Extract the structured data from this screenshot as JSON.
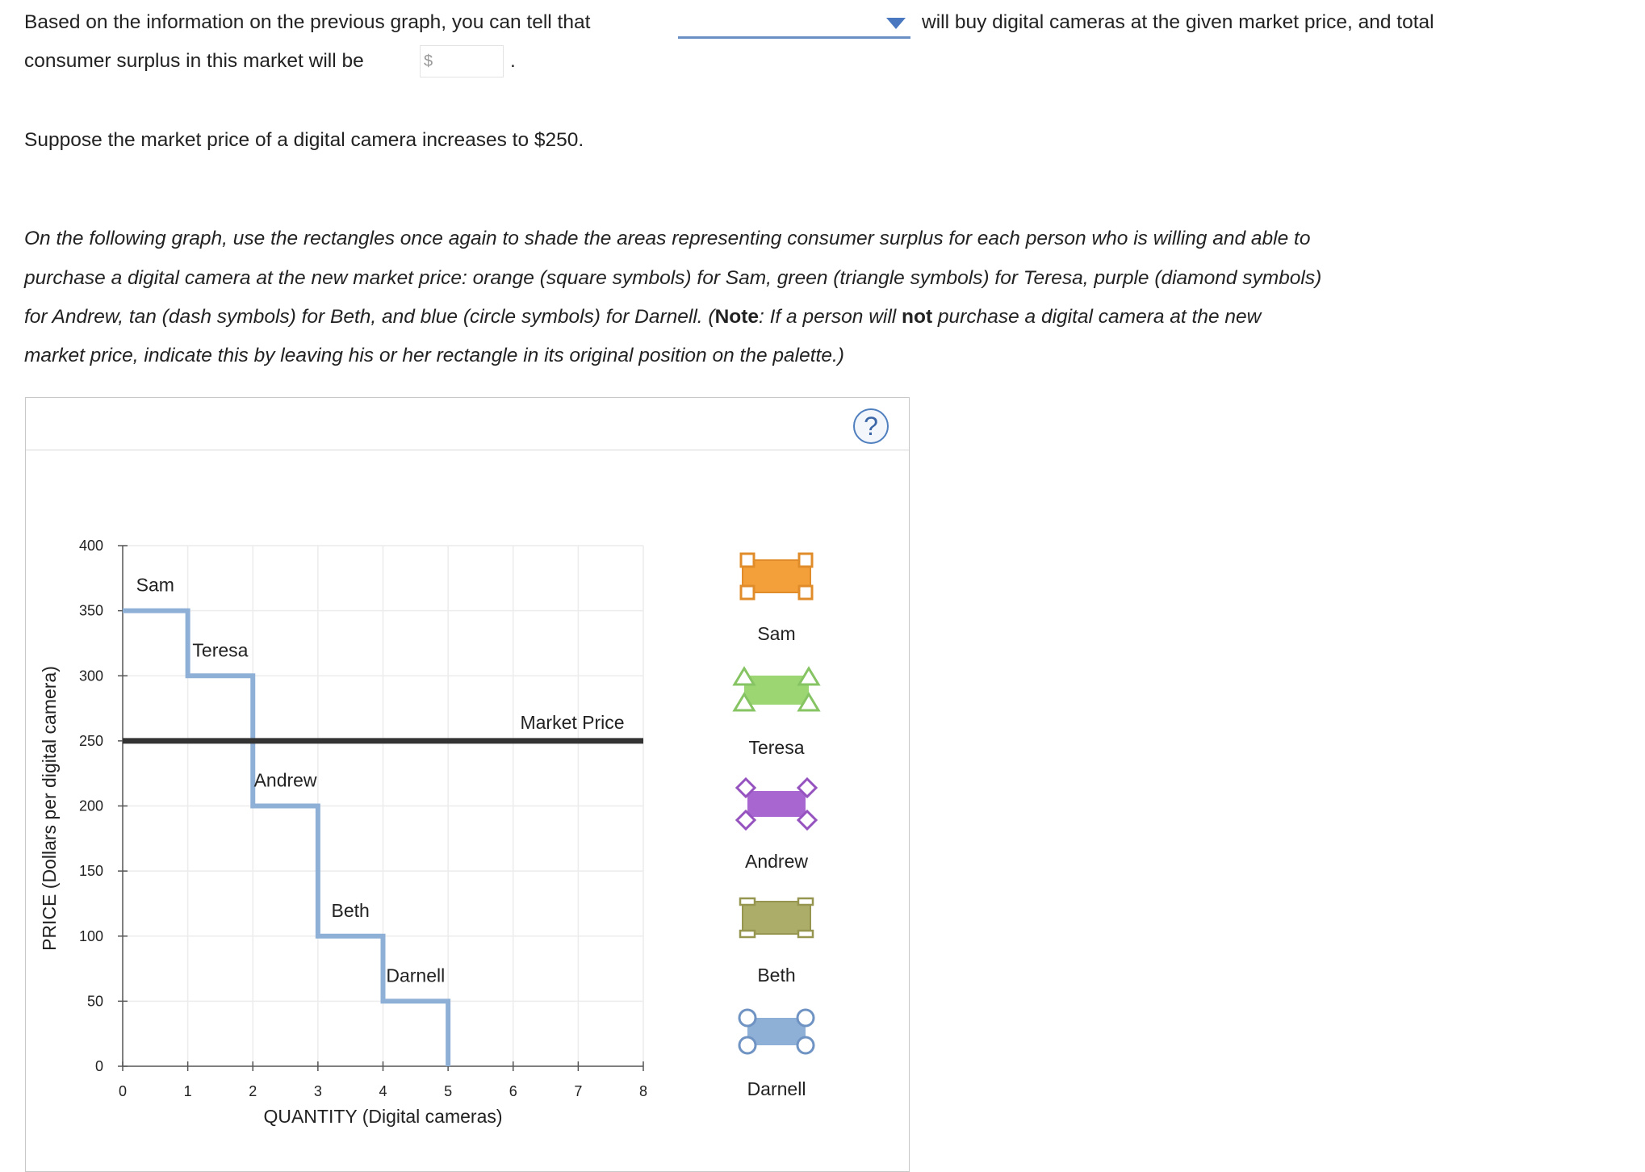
{
  "question": {
    "line1_before": "Based on the information on the previous graph, you can tell that",
    "line1_after": "will buy digital cameras at the given market price, and total",
    "line2_before": "consumer surplus in this market will be",
    "currency_symbol": "$",
    "line2_end": ".",
    "dropdown_value": "",
    "money_value": ""
  },
  "scenario": "Suppose the market price of a digital camera increases to $250.",
  "instructions": {
    "line1": "On the following graph, use the rectangles once again to shade the areas representing consumer surplus for each person who is willing and able to",
    "line2": "purchase a digital camera at the new market price: orange (square symbols) for Sam, green (triangle symbols) for Teresa, purple (diamond symbols)",
    "line3_a": "for Andrew, tan (dash symbols) for Beth, and blue (circle symbols) for Darnell. (",
    "line3_note": "Note",
    "line3_b": ": If a person will ",
    "line3_not": "not",
    "line3_c": " purchase a digital camera at the new",
    "line4": "market price, indicate this by leaving his or her rectangle in its original position on the palette.)"
  },
  "help_label": "?",
  "chart_data": {
    "type": "line",
    "xlabel": "QUANTITY (Digital cameras)",
    "ylabel": "PRICE (Dollars per digital camera)",
    "xlim": [
      0,
      8
    ],
    "ylim": [
      0,
      400
    ],
    "xticks": [
      0,
      1,
      2,
      3,
      4,
      5,
      6,
      7,
      8
    ],
    "yticks": [
      0,
      50,
      100,
      150,
      200,
      250,
      300,
      350,
      400
    ],
    "grid": true,
    "demand_color": "#8fb0d6",
    "market_price_color": "#333333",
    "demand_steps": [
      {
        "name": "Sam",
        "x_start": 0,
        "x_end": 1,
        "price": 350
      },
      {
        "name": "Teresa",
        "x_start": 1,
        "x_end": 2,
        "price": 300
      },
      {
        "name": "Andrew",
        "x_start": 2,
        "x_end": 3,
        "price": 200
      },
      {
        "name": "Beth",
        "x_start": 3,
        "x_end": 4,
        "price": 100
      },
      {
        "name": "Darnell",
        "x_start": 4,
        "x_end": 5,
        "price": 50
      }
    ],
    "market_price": {
      "label": "Market Price",
      "value": 250
    }
  },
  "palette": [
    {
      "name": "Sam",
      "color": "#f4a03a",
      "border": "#e08c2a",
      "symbol": "square"
    },
    {
      "name": "Teresa",
      "color": "#9bd672",
      "border": "#86c463",
      "symbol": "triangle"
    },
    {
      "name": "Andrew",
      "color": "#a866d0",
      "border": "#9653c0",
      "symbol": "diamond"
    },
    {
      "name": "Beth",
      "color": "#adad6a",
      "border": "#969650",
      "symbol": "dash"
    },
    {
      "name": "Darnell",
      "color": "#8fb0d6",
      "border": "#6f93c2",
      "symbol": "circle"
    }
  ]
}
